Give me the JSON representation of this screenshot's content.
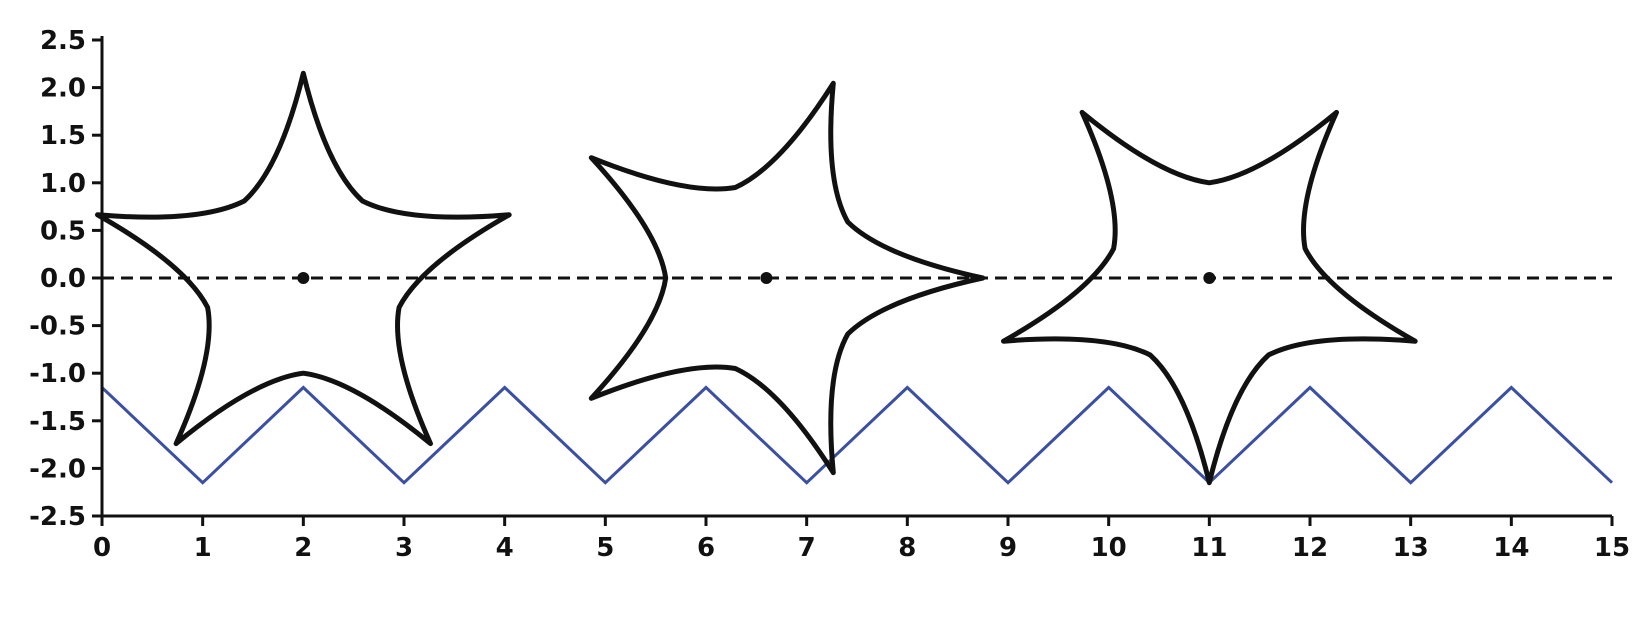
{
  "chart_data": {
    "type": "line",
    "title": "",
    "xlabel": "",
    "ylabel": "",
    "xlim": [
      0,
      15
    ],
    "ylim": [
      -2.5,
      2.5
    ],
    "x_ticks": [
      0,
      1,
      2,
      3,
      4,
      5,
      6,
      7,
      8,
      9,
      10,
      11,
      12,
      13,
      14,
      15
    ],
    "x_tick_labels": [
      "0",
      "1",
      "2",
      "3",
      "4",
      "5",
      "6",
      "7",
      "8",
      "9",
      "10",
      "11",
      "12",
      "13",
      "14",
      "15"
    ],
    "y_ticks": [
      2.5,
      2.0,
      1.5,
      1.0,
      0.5,
      0.0,
      -0.5,
      -1.0,
      -1.5,
      -2.0,
      -2.5
    ],
    "y_tick_labels": [
      "2.5",
      "2.0",
      "1.5",
      "1.0",
      "0.5",
      "0.0",
      "-0.5",
      "-1.0",
      "-1.5",
      "-2.0",
      "-2.5"
    ],
    "grid": false,
    "legend": "none",
    "series": [
      {
        "style": "zigzag",
        "color": "#3b4fa3",
        "x": [
          0,
          1,
          2,
          3,
          4,
          5,
          6,
          7,
          8,
          9,
          10,
          11,
          12,
          13,
          14,
          15
        ],
        "y": [
          -1.15,
          -2.15,
          -1.15,
          -2.15,
          -1.15,
          -2.15,
          -1.15,
          -2.15,
          -1.15,
          -2.15,
          -1.15,
          -2.15,
          -1.15,
          -2.15,
          -1.15,
          -2.15
        ]
      },
      {
        "style": "dashed-baseline",
        "color": "#111111",
        "x": [
          0,
          15
        ],
        "y": [
          0,
          0
        ]
      }
    ],
    "stars": [
      {
        "center_x": 2.0,
        "center_y": 0.0,
        "outer_radius": 2.15,
        "inner_radius": 1.0,
        "rotation_deg": 90,
        "points": 5
      },
      {
        "center_x": 6.6,
        "center_y": 0.0,
        "outer_radius": 2.15,
        "inner_radius": 1.0,
        "rotation_deg": 72,
        "points": 5
      },
      {
        "center_x": 11.0,
        "center_y": 0.0,
        "outer_radius": 2.15,
        "inner_radius": 1.0,
        "rotation_deg": 54,
        "points": 5
      }
    ]
  }
}
